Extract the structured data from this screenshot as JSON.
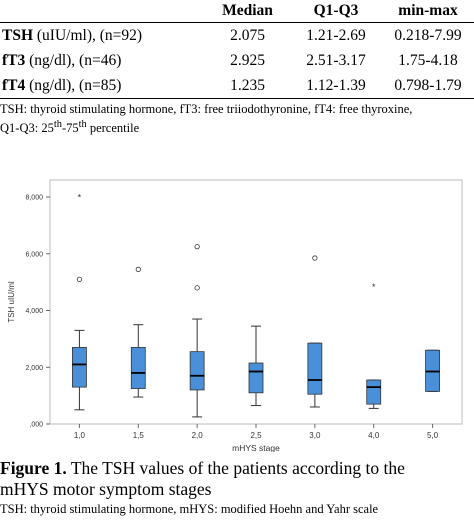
{
  "table": {
    "headers": [
      "",
      "Median",
      "Q1-Q3",
      "min-max"
    ],
    "rows": [
      {
        "label_bold": "TSH",
        "label_rest": " (uIU/ml), (n=92)",
        "median": "2.075",
        "q": "1.21-2.69",
        "range": "0.218-7.99"
      },
      {
        "label_bold": "fT3",
        "label_rest": " (ng/dl), (n=46)",
        "median": "2.925",
        "q": "2.51-3.17",
        "range": "1.75-4.18"
      },
      {
        "label_bold": "fT4",
        "label_rest": " (ng/dl), (n=85)",
        "median": "1.235",
        "q": "1.12-1.39",
        "range": "0.798-1.79"
      }
    ],
    "note_line1": "TSH: thyroid stimulating hormone, fT3: free triiodothyronine, fT4: free thyroxine,",
    "note_line2_pre": "Q1-Q3: 25",
    "note_sup1": "th",
    "note_mid": "-75",
    "note_sup2": "th",
    "note_post": " percentile"
  },
  "chart_data": {
    "type": "boxplot",
    "xlabel": "mHYS stage",
    "ylabel": "TSH uIU/ml",
    "ylim": [
      0,
      8.6
    ],
    "yticks": [
      {
        "value": 0,
        "label": ",000"
      },
      {
        "value": 2,
        "label": "2,000"
      },
      {
        "value": 4,
        "label": "4,000"
      },
      {
        "value": 6,
        "label": "6,000"
      },
      {
        "value": 8,
        "label": "8,000"
      }
    ],
    "categories": [
      "1,0",
      "1,5",
      "2,0",
      "2,5",
      "3,0",
      "4,0",
      "5,0"
    ],
    "boxes": [
      {
        "min": 0.5,
        "q1": 1.3,
        "median": 2.1,
        "q3": 2.7,
        "max": 3.3,
        "outliers": [
          5.1
        ],
        "extremes": [
          8.0
        ]
      },
      {
        "min": 0.95,
        "q1": 1.25,
        "median": 1.8,
        "q3": 2.7,
        "max": 3.5,
        "outliers": [
          5.45
        ],
        "extremes": []
      },
      {
        "min": 0.25,
        "q1": 1.2,
        "median": 1.7,
        "q3": 2.55,
        "max": 3.7,
        "outliers": [
          4.8,
          6.25
        ],
        "extremes": []
      },
      {
        "min": 0.65,
        "q1": 1.1,
        "median": 1.85,
        "q3": 2.15,
        "max": 3.45,
        "outliers": [],
        "extremes": []
      },
      {
        "min": 0.6,
        "q1": 1.05,
        "median": 1.55,
        "q3": 2.85,
        "max": 2.85,
        "outliers": [
          5.85
        ],
        "extremes": []
      },
      {
        "min": 0.55,
        "q1": 0.7,
        "median": 1.3,
        "q3": 1.55,
        "max": 1.55,
        "outliers": [],
        "extremes": [
          4.85
        ]
      },
      {
        "min": 1.15,
        "q1": 1.15,
        "median": 1.85,
        "q3": 2.6,
        "max": 2.6,
        "outliers": [],
        "extremes": []
      }
    ],
    "box_color": "#4a90d9",
    "outlier_symbol": "o",
    "extreme_symbol": "*"
  },
  "caption": {
    "label": "Figure 1.",
    "text_line1": " The TSH values of the patients according to the",
    "text_line2": "mHYS motor symptom stages",
    "note": "TSH: thyroid stimulating hormone, mHYS: modified Hoehn and Yahr scale"
  }
}
